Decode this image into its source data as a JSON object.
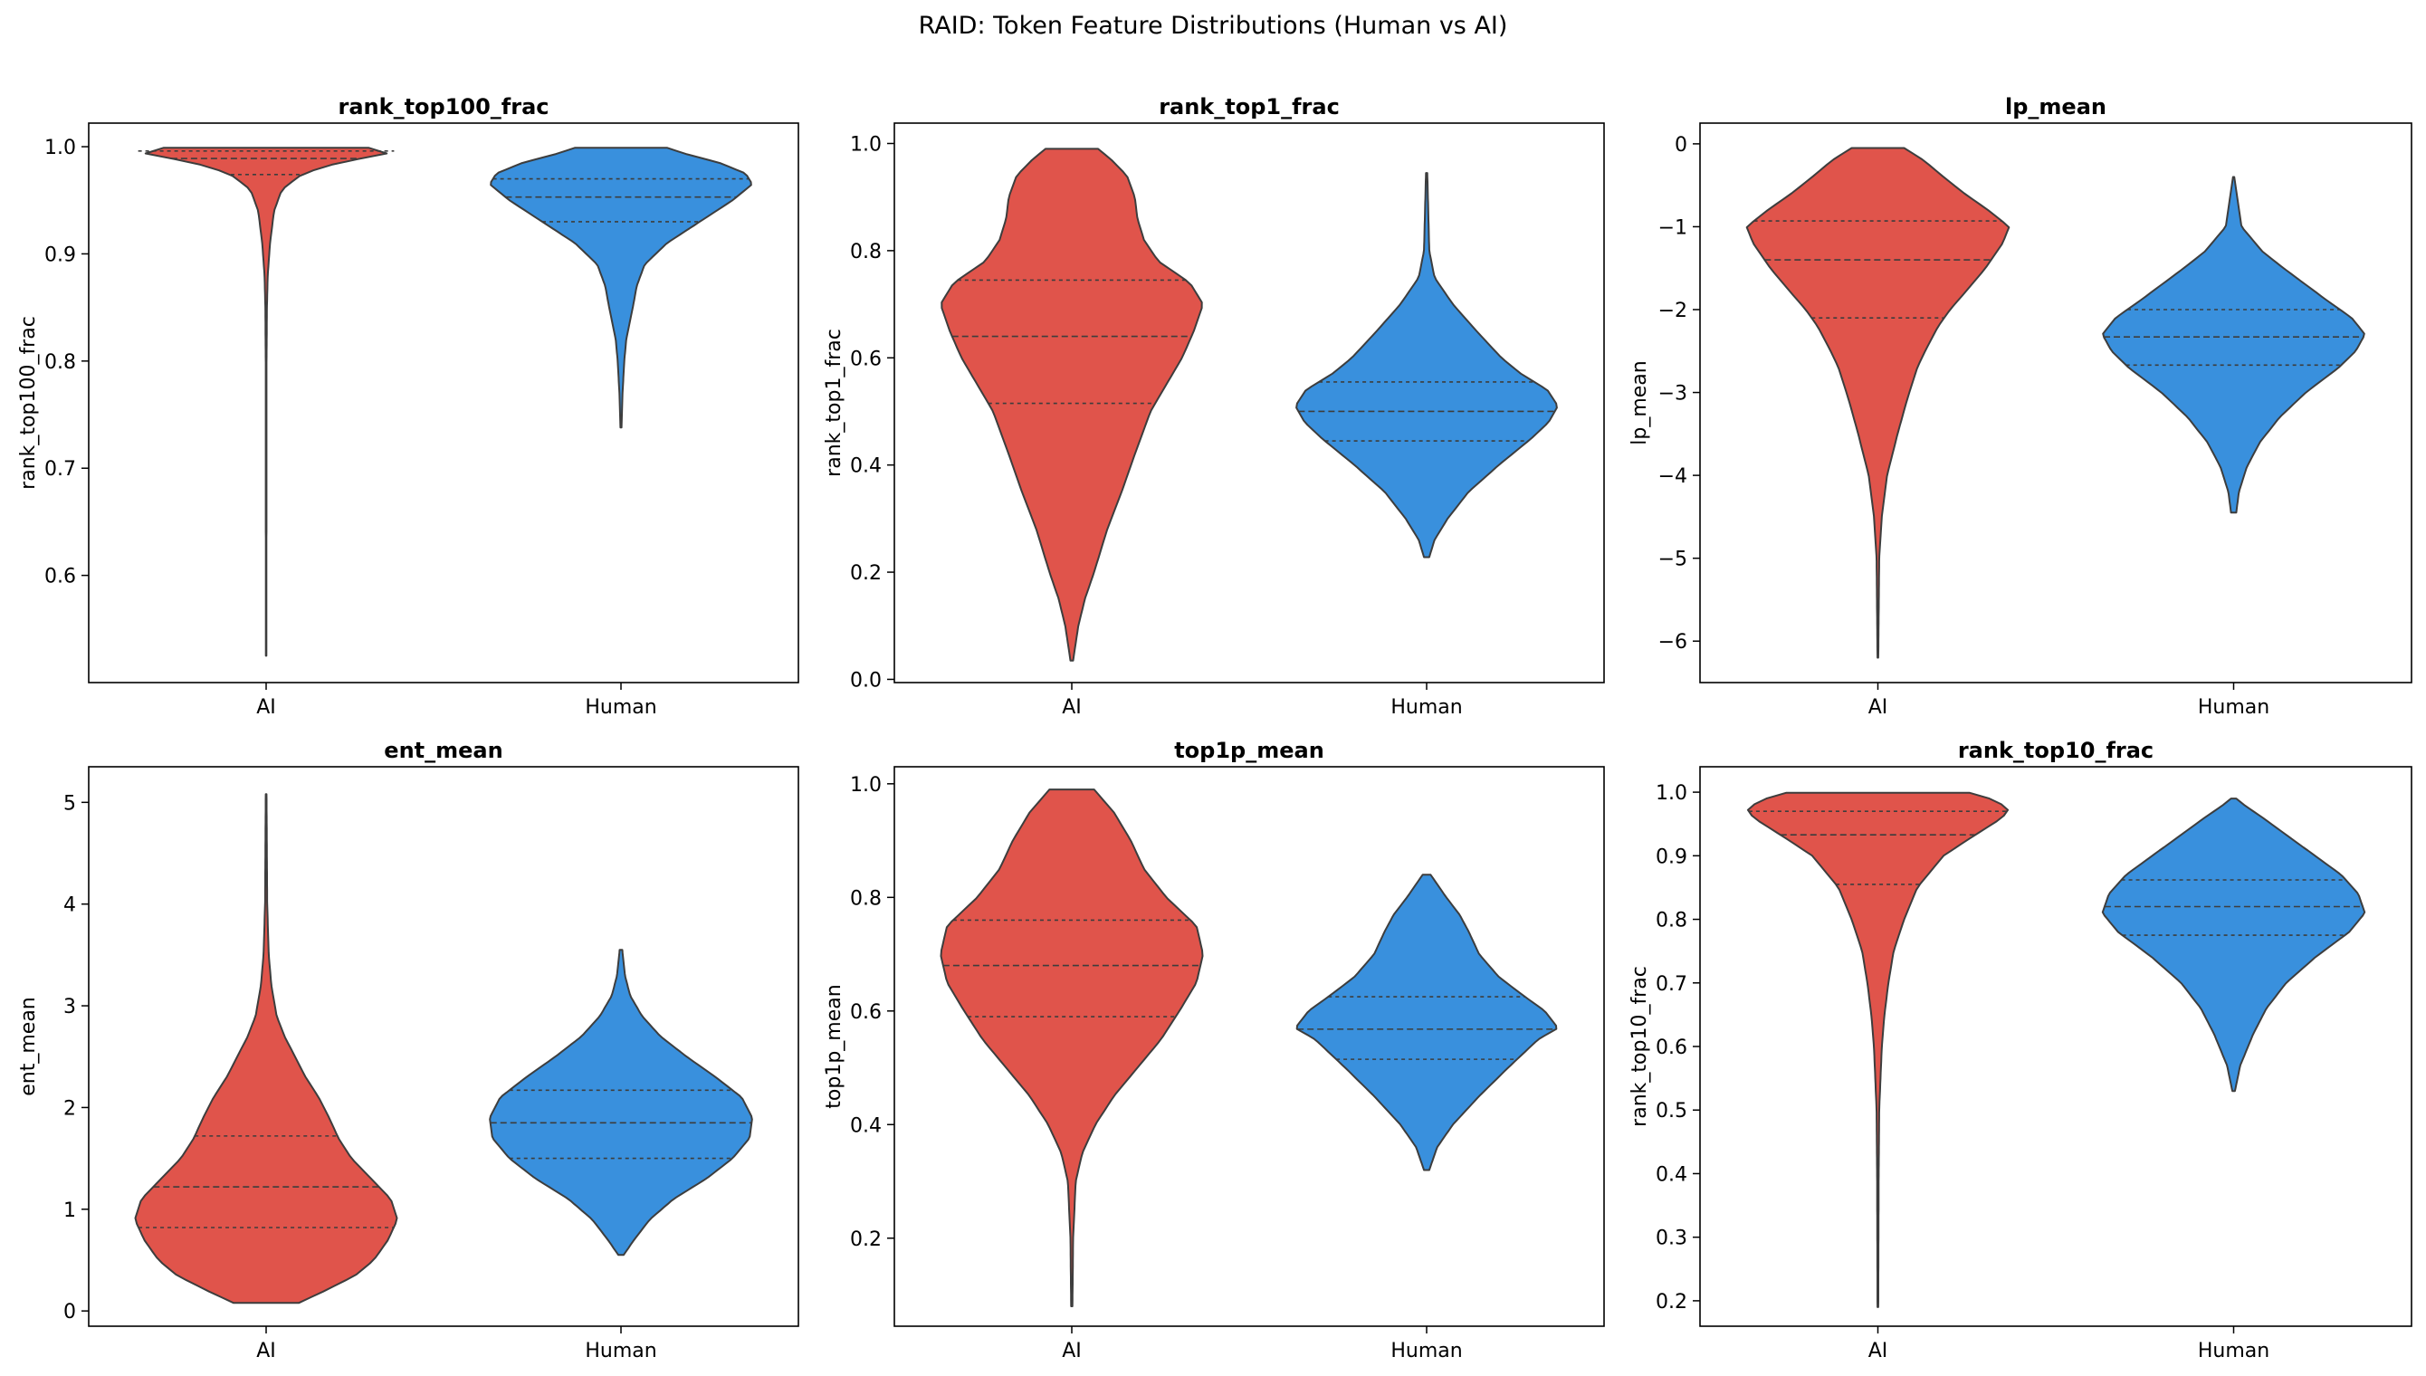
{
  "figure_title": "RAID: Token Feature Distributions (Human vs AI)",
  "colors": {
    "AI": "#e0544b",
    "Human": "#3990dd",
    "outline": "#3d3d3d"
  },
  "chart_data": [
    {
      "type": "violin",
      "title": "rank_top100_frac",
      "ylabel": "rank_top100_frac",
      "categories": [
        "AI",
        "Human"
      ],
      "yticks": [
        0.6,
        0.7,
        0.8,
        0.9,
        1.0
      ],
      "ytick_labels": [
        "0.6",
        "0.7",
        "0.8",
        "0.9",
        "1.0"
      ],
      "ylim": [
        0.5,
        1.022
      ],
      "series": [
        {
          "name": "AI",
          "min": 0.525,
          "max": 0.999,
          "quartiles": [
            0.974,
            0.989,
            0.996
          ],
          "profile": [
            [
              0.525,
              0.002
            ],
            [
              0.8,
              0.003
            ],
            [
              0.85,
              0.006
            ],
            [
              0.88,
              0.012
            ],
            [
              0.91,
              0.03
            ],
            [
              0.94,
              0.06
            ],
            [
              0.96,
              0.12
            ],
            [
              0.975,
              0.28
            ],
            [
              0.985,
              0.55
            ],
            [
              0.993,
              0.9
            ],
            [
              0.997,
              1.0
            ],
            [
              0.999,
              0.78
            ]
          ]
        },
        {
          "name": "Human",
          "min": 0.738,
          "max": 0.999,
          "quartiles": [
            0.93,
            0.953,
            0.97
          ],
          "profile": [
            [
              0.738,
              0.004
            ],
            [
              0.77,
              0.012
            ],
            [
              0.8,
              0.025
            ],
            [
              0.82,
              0.04
            ],
            [
              0.85,
              0.09
            ],
            [
              0.87,
              0.12
            ],
            [
              0.89,
              0.18
            ],
            [
              0.91,
              0.35
            ],
            [
              0.93,
              0.6
            ],
            [
              0.95,
              0.85
            ],
            [
              0.965,
              1.0
            ],
            [
              0.975,
              0.95
            ],
            [
              0.985,
              0.75
            ],
            [
              0.993,
              0.5
            ],
            [
              0.999,
              0.35
            ]
          ]
        }
      ]
    },
    {
      "type": "violin",
      "title": "rank_top1_frac",
      "ylabel": "rank_top1_frac",
      "categories": [
        "AI",
        "Human"
      ],
      "yticks": [
        0.0,
        0.2,
        0.4,
        0.6,
        0.8,
        1.0
      ],
      "ytick_labels": [
        "0.0",
        "0.2",
        "0.4",
        "0.6",
        "0.8",
        "1.0"
      ],
      "ylim": [
        -0.006,
        1.038
      ],
      "series": [
        {
          "name": "AI",
          "min": 0.035,
          "max": 0.99,
          "quartiles": [
            0.515,
            0.64,
            0.745
          ],
          "profile": [
            [
              0.035,
              0.01
            ],
            [
              0.1,
              0.05
            ],
            [
              0.15,
              0.1
            ],
            [
              0.2,
              0.17
            ],
            [
              0.28,
              0.27
            ],
            [
              0.35,
              0.38
            ],
            [
              0.42,
              0.48
            ],
            [
              0.5,
              0.6
            ],
            [
              0.55,
              0.72
            ],
            [
              0.6,
              0.84
            ],
            [
              0.65,
              0.93
            ],
            [
              0.7,
              1.0
            ],
            [
              0.74,
              0.9
            ],
            [
              0.78,
              0.66
            ],
            [
              0.82,
              0.55
            ],
            [
              0.86,
              0.5
            ],
            [
              0.9,
              0.48
            ],
            [
              0.94,
              0.42
            ],
            [
              0.97,
              0.3
            ],
            [
              0.99,
              0.2
            ]
          ]
        },
        {
          "name": "Human",
          "min": 0.228,
          "max": 0.945,
          "quartiles": [
            0.445,
            0.5,
            0.555
          ],
          "profile": [
            [
              0.228,
              0.02
            ],
            [
              0.26,
              0.06
            ],
            [
              0.3,
              0.16
            ],
            [
              0.35,
              0.32
            ],
            [
              0.4,
              0.55
            ],
            [
              0.45,
              0.8
            ],
            [
              0.48,
              0.93
            ],
            [
              0.51,
              1.0
            ],
            [
              0.54,
              0.92
            ],
            [
              0.57,
              0.72
            ],
            [
              0.6,
              0.57
            ],
            [
              0.65,
              0.38
            ],
            [
              0.7,
              0.2
            ],
            [
              0.75,
              0.06
            ],
            [
              0.8,
              0.02
            ],
            [
              0.945,
              0.005
            ]
          ]
        }
      ]
    },
    {
      "type": "violin",
      "title": "lp_mean",
      "ylabel": "lp_mean",
      "categories": [
        "AI",
        "Human"
      ],
      "yticks": [
        -6,
        -5,
        -4,
        -3,
        -2,
        -1,
        0
      ],
      "ytick_labels": [
        "−6",
        "−5",
        "−4",
        "−3",
        "−2",
        "−1",
        "0"
      ],
      "ylim": [
        -6.5,
        0.25
      ],
      "series": [
        {
          "name": "AI",
          "min": -6.2,
          "max": -0.05,
          "quartiles": [
            -2.1,
            -1.4,
            -0.93
          ],
          "profile": [
            [
              -6.2,
              0.003
            ],
            [
              -5.0,
              0.01
            ],
            [
              -4.5,
              0.03
            ],
            [
              -4.0,
              0.07
            ],
            [
              -3.5,
              0.15
            ],
            [
              -3.1,
              0.22
            ],
            [
              -2.9,
              0.26
            ],
            [
              -2.7,
              0.3
            ],
            [
              -2.5,
              0.36
            ],
            [
              -2.2,
              0.46
            ],
            [
              -2.0,
              0.55
            ],
            [
              -1.8,
              0.66
            ],
            [
              -1.5,
              0.82
            ],
            [
              -1.2,
              0.95
            ],
            [
              -1.0,
              1.0
            ],
            [
              -0.8,
              0.84
            ],
            [
              -0.6,
              0.66
            ],
            [
              -0.4,
              0.5
            ],
            [
              -0.2,
              0.35
            ],
            [
              -0.05,
              0.2
            ]
          ]
        },
        {
          "name": "Human",
          "min": -4.45,
          "max": -0.4,
          "quartiles": [
            -2.67,
            -2.33,
            -2.0
          ],
          "profile": [
            [
              -4.45,
              0.02
            ],
            [
              -4.2,
              0.04
            ],
            [
              -3.9,
              0.1
            ],
            [
              -3.6,
              0.2
            ],
            [
              -3.3,
              0.35
            ],
            [
              -3.0,
              0.55
            ],
            [
              -2.7,
              0.8
            ],
            [
              -2.5,
              0.93
            ],
            [
              -2.3,
              1.0
            ],
            [
              -2.1,
              0.9
            ],
            [
              -1.9,
              0.72
            ],
            [
              -1.7,
              0.55
            ],
            [
              -1.5,
              0.38
            ],
            [
              -1.3,
              0.22
            ],
            [
              -1.0,
              0.06
            ],
            [
              -0.4,
              0.005
            ]
          ]
        }
      ]
    },
    {
      "type": "violin",
      "title": "ent_mean",
      "ylabel": "ent_mean",
      "categories": [
        "AI",
        "Human"
      ],
      "yticks": [
        0,
        1,
        2,
        3,
        4,
        5
      ],
      "ytick_labels": [
        "0",
        "1",
        "2",
        "3",
        "4",
        "5"
      ],
      "ylim": [
        -0.15,
        5.35
      ],
      "series": [
        {
          "name": "AI",
          "min": 0.08,
          "max": 5.08,
          "quartiles": [
            0.82,
            1.22,
            1.72
          ],
          "profile": [
            [
              0.08,
              0.25
            ],
            [
              0.2,
              0.45
            ],
            [
              0.35,
              0.68
            ],
            [
              0.5,
              0.82
            ],
            [
              0.7,
              0.93
            ],
            [
              0.9,
              1.0
            ],
            [
              1.1,
              0.95
            ],
            [
              1.3,
              0.8
            ],
            [
              1.5,
              0.65
            ],
            [
              1.7,
              0.55
            ],
            [
              1.9,
              0.48
            ],
            [
              2.1,
              0.4
            ],
            [
              2.3,
              0.3
            ],
            [
              2.5,
              0.22
            ],
            [
              2.7,
              0.14
            ],
            [
              2.9,
              0.08
            ],
            [
              3.2,
              0.04
            ],
            [
              3.5,
              0.02
            ],
            [
              4.0,
              0.008
            ],
            [
              5.08,
              0.003
            ]
          ]
        },
        {
          "name": "Human",
          "min": 0.55,
          "max": 3.55,
          "quartiles": [
            1.5,
            1.85,
            2.17
          ],
          "profile": [
            [
              0.55,
              0.02
            ],
            [
              0.7,
              0.1
            ],
            [
              0.9,
              0.22
            ],
            [
              1.1,
              0.4
            ],
            [
              1.3,
              0.65
            ],
            [
              1.5,
              0.85
            ],
            [
              1.7,
              0.98
            ],
            [
              1.9,
              1.0
            ],
            [
              2.1,
              0.92
            ],
            [
              2.3,
              0.72
            ],
            [
              2.5,
              0.5
            ],
            [
              2.7,
              0.3
            ],
            [
              2.9,
              0.16
            ],
            [
              3.1,
              0.07
            ],
            [
              3.3,
              0.03
            ],
            [
              3.55,
              0.01
            ]
          ]
        }
      ]
    },
    {
      "type": "violin",
      "title": "top1p_mean",
      "ylabel": "top1p_mean",
      "categories": [
        "AI",
        "Human"
      ],
      "yticks": [
        0.2,
        0.4,
        0.6,
        0.8,
        1.0
      ],
      "ytick_labels": [
        "0.2",
        "0.4",
        "0.6",
        "0.8",
        "1.0"
      ],
      "ylim": [
        0.045,
        1.03
      ],
      "series": [
        {
          "name": "AI",
          "min": 0.08,
          "max": 0.99,
          "quartiles": [
            0.59,
            0.68,
            0.76
          ],
          "profile": [
            [
              0.08,
              0.005
            ],
            [
              0.2,
              0.01
            ],
            [
              0.3,
              0.03
            ],
            [
              0.35,
              0.08
            ],
            [
              0.4,
              0.18
            ],
            [
              0.45,
              0.32
            ],
            [
              0.5,
              0.5
            ],
            [
              0.55,
              0.68
            ],
            [
              0.6,
              0.82
            ],
            [
              0.65,
              0.95
            ],
            [
              0.7,
              1.0
            ],
            [
              0.75,
              0.95
            ],
            [
              0.8,
              0.72
            ],
            [
              0.85,
              0.55
            ],
            [
              0.9,
              0.45
            ],
            [
              0.95,
              0.32
            ],
            [
              0.99,
              0.17
            ]
          ]
        },
        {
          "name": "Human",
          "min": 0.32,
          "max": 0.84,
          "quartiles": [
            0.515,
            0.568,
            0.625
          ],
          "profile": [
            [
              0.32,
              0.02
            ],
            [
              0.36,
              0.08
            ],
            [
              0.4,
              0.2
            ],
            [
              0.45,
              0.4
            ],
            [
              0.5,
              0.62
            ],
            [
              0.55,
              0.85
            ],
            [
              0.57,
              1.0
            ],
            [
              0.6,
              0.9
            ],
            [
              0.63,
              0.72
            ],
            [
              0.66,
              0.55
            ],
            [
              0.7,
              0.4
            ],
            [
              0.74,
              0.32
            ],
            [
              0.77,
              0.25
            ],
            [
              0.8,
              0.15
            ],
            [
              0.84,
              0.03
            ]
          ]
        }
      ]
    },
    {
      "type": "violin",
      "title": "rank_top10_frac",
      "ylabel": "rank_top10_frac",
      "categories": [
        "AI",
        "Human"
      ],
      "yticks": [
        0.2,
        0.3,
        0.4,
        0.5,
        0.6,
        0.7,
        0.8,
        0.9,
        1.0
      ],
      "ytick_labels": [
        "0.2",
        "0.3",
        "0.4",
        "0.5",
        "0.6",
        "0.7",
        "0.8",
        "0.9",
        "1.0"
      ],
      "ylim": [
        0.16,
        1.04
      ],
      "series": [
        {
          "name": "AI",
          "min": 0.19,
          "max": 0.999,
          "quartiles": [
            0.855,
            0.933,
            0.97
          ],
          "profile": [
            [
              0.19,
              0.003
            ],
            [
              0.4,
              0.006
            ],
            [
              0.5,
              0.01
            ],
            [
              0.6,
              0.03
            ],
            [
              0.65,
              0.05
            ],
            [
              0.7,
              0.08
            ],
            [
              0.75,
              0.12
            ],
            [
              0.8,
              0.2
            ],
            [
              0.85,
              0.3
            ],
            [
              0.9,
              0.5
            ],
            [
              0.93,
              0.72
            ],
            [
              0.96,
              0.95
            ],
            [
              0.975,
              1.0
            ],
            [
              0.99,
              0.85
            ],
            [
              0.999,
              0.7
            ]
          ]
        },
        {
          "name": "Human",
          "min": 0.53,
          "max": 0.99,
          "quartiles": [
            0.775,
            0.82,
            0.862
          ],
          "profile": [
            [
              0.53,
              0.01
            ],
            [
              0.57,
              0.05
            ],
            [
              0.62,
              0.15
            ],
            [
              0.66,
              0.25
            ],
            [
              0.7,
              0.4
            ],
            [
              0.74,
              0.62
            ],
            [
              0.78,
              0.88
            ],
            [
              0.81,
              1.0
            ],
            [
              0.84,
              0.95
            ],
            [
              0.87,
              0.82
            ],
            [
              0.9,
              0.62
            ],
            [
              0.93,
              0.42
            ],
            [
              0.96,
              0.22
            ],
            [
              0.98,
              0.08
            ],
            [
              0.99,
              0.02
            ]
          ]
        }
      ]
    }
  ]
}
